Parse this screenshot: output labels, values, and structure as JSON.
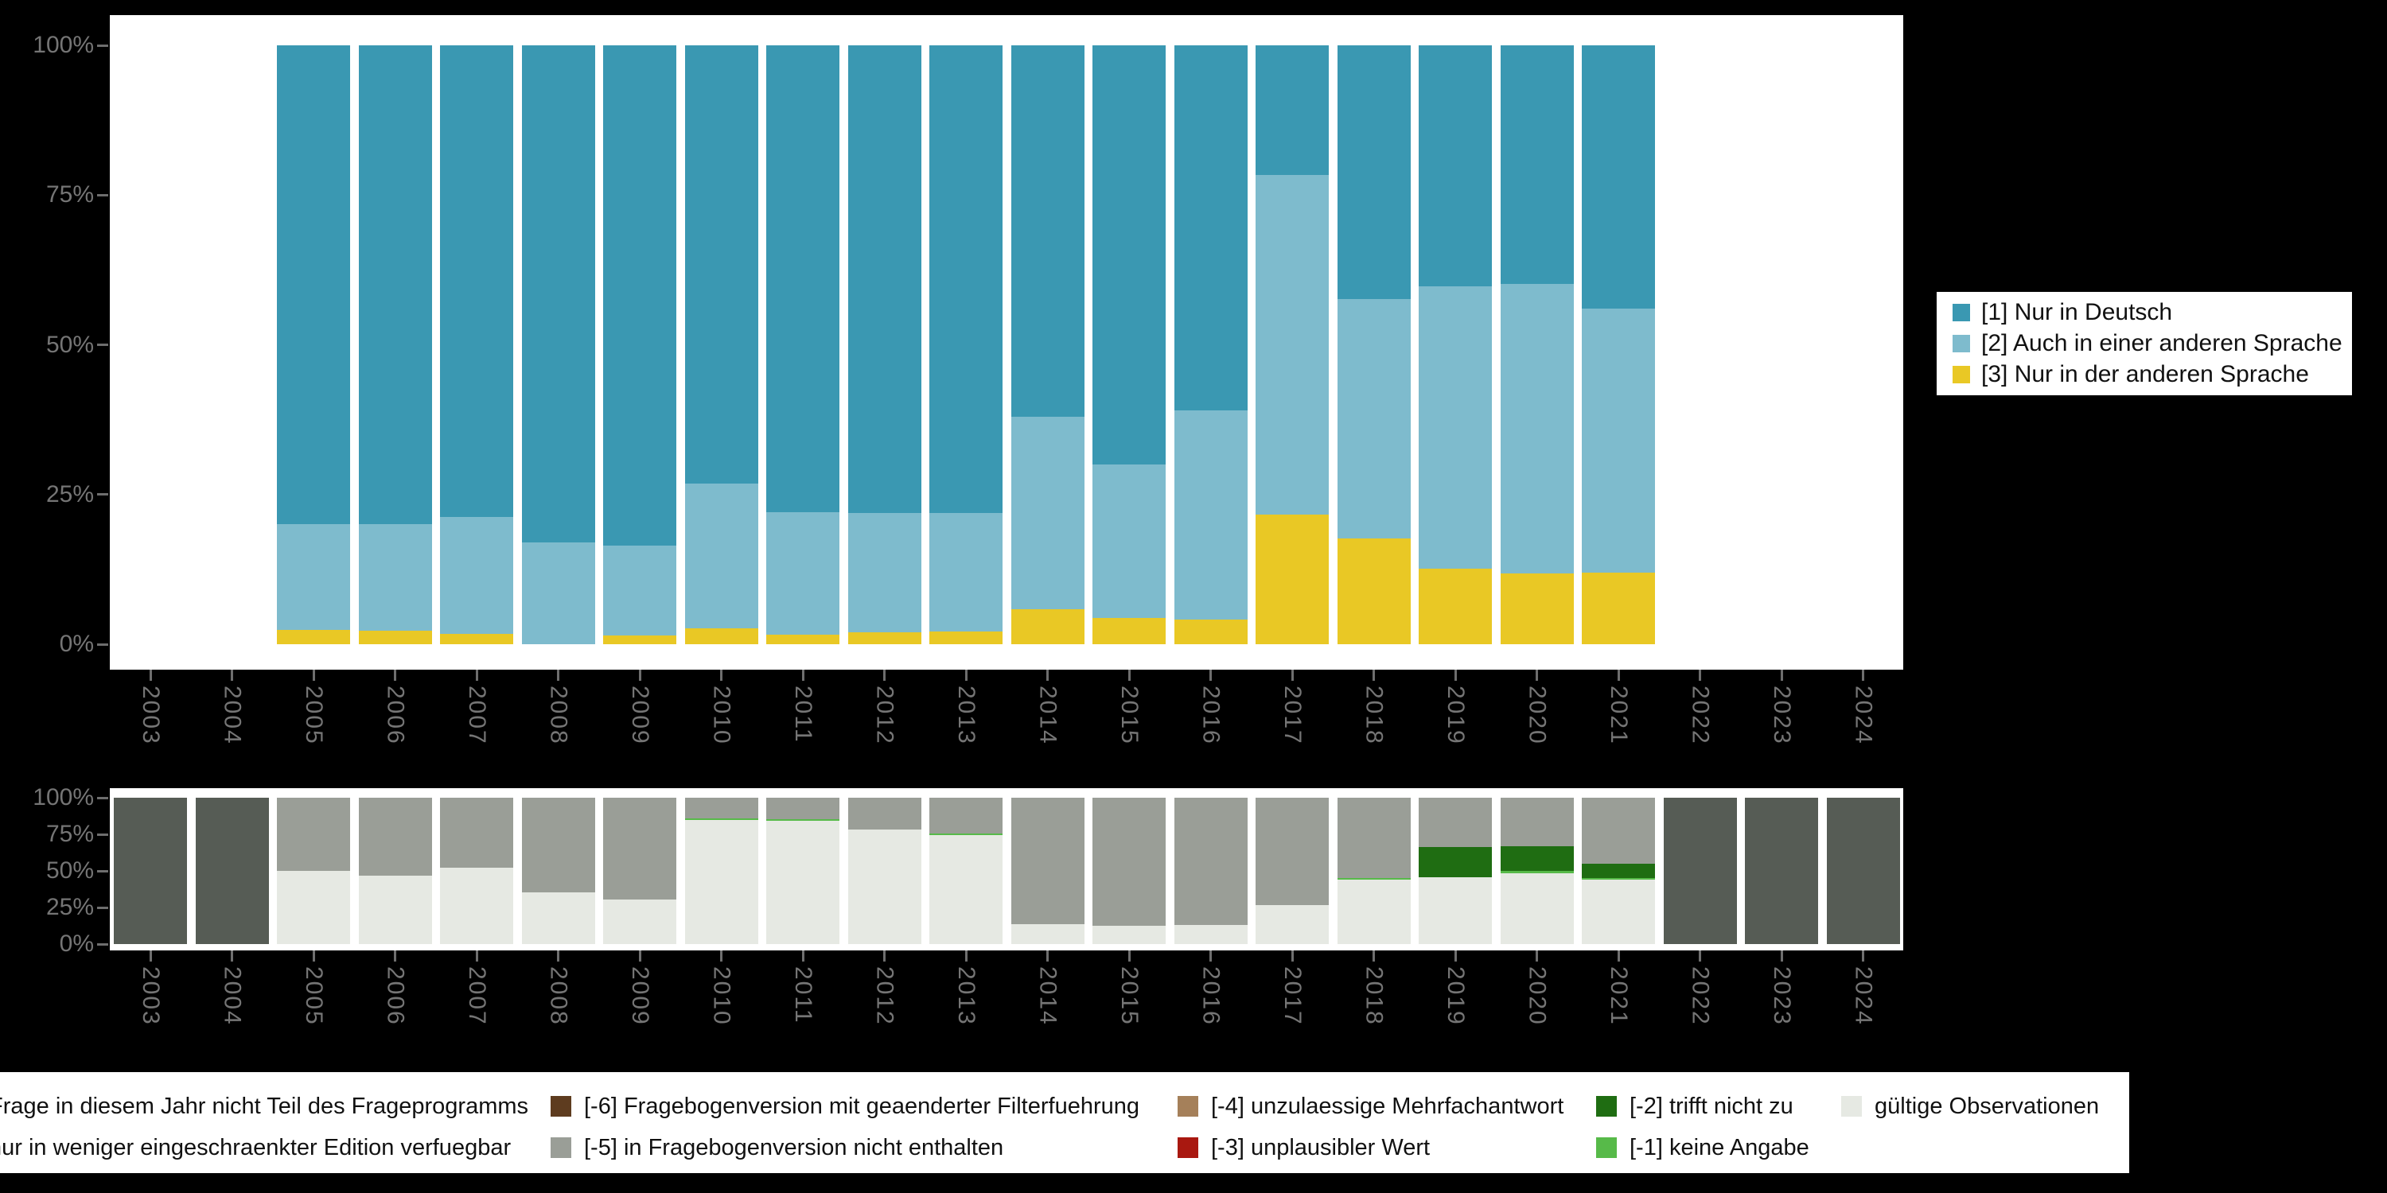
{
  "figure": {
    "background_color": "#000000",
    "panel_color": "#ffffff",
    "tick_text_color": "#757575"
  },
  "axes": {
    "y_tick_labels": [
      "100%",
      "75%",
      "50%",
      "25%",
      "0%"
    ],
    "year_labels": [
      "2003",
      "2004",
      "2005",
      "2006",
      "2007",
      "2008",
      "2009",
      "2010",
      "2011",
      "2012",
      "2013",
      "2014",
      "2015",
      "2016",
      "2017",
      "2018",
      "2019",
      "2020",
      "2021",
      "2022",
      "2023",
      "2024"
    ]
  },
  "top_legend": {
    "entries": [
      {
        "label": "[1] Nur in Deutsch",
        "color": "#3a98b2"
      },
      {
        "label": "[2] Auch in einer anderen Sprache",
        "color": "#7ebbcd"
      },
      {
        "label": "[3] Nur in der anderen Sprache",
        "color": "#e9c825"
      }
    ]
  },
  "bottom_legend": {
    "rows": [
      [
        {
          "label": "Frage in diesem Jahr nicht Teil des Frageprogramms",
          "color": "#565c55"
        },
        {
          "label": "[-6] Fragebogenversion mit geaenderter Filterfuehrung",
          "color": "#5e3c1f"
        },
        {
          "label": "[-4] unzulaessige Mehrfachantwort",
          "color": "#a5805a"
        },
        {
          "label": "[-2] trifft nicht zu",
          "color": "#1f6d12"
        },
        {
          "label": "gültige Observationen",
          "color": "#e6e9e3"
        }
      ],
      [
        {
          "label": "nur in weniger eingeschraenkter Edition verfuegbar",
          "color": "#9a9e97"
        },
        {
          "label": "[-5] in Fragebogenversion nicht enthalten",
          "color": "#9a9e97"
        },
        {
          "label": "[-3] unplausibler Wert",
          "color": "#a91810"
        },
        {
          "label": "[-1] keine Angabe",
          "color": "#57ba49"
        }
      ]
    ]
  },
  "chart_data": [
    {
      "type": "bar",
      "stacked": true,
      "title": "",
      "xlabel": "",
      "ylabel": "",
      "ylim": [
        0,
        100
      ],
      "grid": false,
      "legend_position": "right",
      "y_tick_labels": [
        "0%",
        "25%",
        "50%",
        "75%",
        "100%"
      ],
      "categories": [
        "2003",
        "2004",
        "2005",
        "2006",
        "2007",
        "2008",
        "2009",
        "2010",
        "2011",
        "2012",
        "2013",
        "2014",
        "2015",
        "2016",
        "2017",
        "2018",
        "2019",
        "2020",
        "2021",
        "2022",
        "2023",
        "2024"
      ],
      "series": [
        {
          "name": "[3] Nur in der anderen Sprache",
          "color": "#e9c825",
          "values": [
            0,
            0,
            2.4,
            2.3,
            1.7,
            0,
            1.5,
            2.7,
            1.6,
            2.0,
            2.1,
            5.8,
            4.4,
            4.1,
            21.7,
            17.6,
            12.6,
            11.8,
            12.0,
            0,
            0,
            0
          ]
        },
        {
          "name": "[2] Auch in einer anderen Sprache",
          "color": "#7ebbcd",
          "values": [
            0,
            0,
            17.6,
            17.7,
            19.5,
            17.0,
            15.0,
            24.1,
            20.4,
            19.9,
            19.8,
            32.2,
            25.6,
            35.0,
            56.7,
            40.1,
            47.2,
            48.4,
            44.0,
            0,
            0,
            0
          ]
        },
        {
          "name": "[1] Nur in Deutsch",
          "color": "#3a98b2",
          "values": [
            0,
            0,
            80.0,
            80.0,
            78.8,
            83.0,
            83.5,
            73.2,
            78.0,
            78.1,
            78.1,
            62.0,
            70.0,
            60.9,
            21.6,
            42.3,
            40.2,
            39.8,
            44.0,
            0,
            0,
            0
          ]
        }
      ]
    },
    {
      "type": "bar",
      "stacked": true,
      "title": "",
      "xlabel": "",
      "ylabel": "",
      "ylim": [
        0,
        100
      ],
      "grid": false,
      "legend_position": "bottom",
      "y_tick_labels": [
        "0%",
        "25%",
        "50%",
        "75%",
        "100%"
      ],
      "categories": [
        "2003",
        "2004",
        "2005",
        "2006",
        "2007",
        "2008",
        "2009",
        "2010",
        "2011",
        "2012",
        "2013",
        "2014",
        "2015",
        "2016",
        "2017",
        "2018",
        "2019",
        "2020",
        "2021",
        "2022",
        "2023",
        "2024"
      ],
      "series": [
        {
          "name": "gültige Observationen",
          "color": "#e6e9e3",
          "values": [
            0,
            0,
            50,
            47,
            52,
            35.5,
            30.5,
            85,
            84.5,
            78,
            74.5,
            13.7,
            12.3,
            12.8,
            26.5,
            44,
            45.5,
            48.5,
            44,
            0,
            0,
            0
          ]
        },
        {
          "name": "[-1] keine Angabe",
          "color": "#57ba49",
          "values": [
            0,
            0,
            0,
            0,
            0,
            0,
            0,
            1,
            1,
            0,
            1,
            0,
            0,
            0,
            0,
            1,
            0,
            1.5,
            1,
            0,
            0,
            0
          ]
        },
        {
          "name": "[-2] trifft nicht zu",
          "color": "#1f6d12",
          "values": [
            0,
            0,
            0,
            0,
            0,
            0,
            0,
            0,
            0,
            0,
            0,
            0,
            0,
            0,
            0,
            0,
            21,
            17,
            10,
            0,
            0,
            0
          ]
        },
        {
          "name": "[-3] unplausibler Wert",
          "color": "#a91810",
          "values": [
            0,
            0,
            0,
            0,
            0,
            0,
            0,
            0,
            0,
            0,
            0,
            0,
            0,
            0,
            0,
            0,
            0,
            0,
            0,
            0,
            0,
            0
          ]
        },
        {
          "name": "[-4] unzulaessige Mehrfachantwort",
          "color": "#a5805a",
          "values": [
            0,
            0,
            0,
            0,
            0,
            0,
            0,
            0,
            0,
            0,
            0,
            0,
            0,
            0,
            0,
            0,
            0,
            0,
            0,
            0,
            0,
            0
          ]
        },
        {
          "name": "[-5] in Fragebogenversion nicht enthalten",
          "color": "#9a9e97",
          "values": [
            0,
            0,
            50,
            53,
            48,
            64.5,
            69.5,
            14,
            14.5,
            22,
            24.5,
            86.3,
            87.7,
            87.2,
            73.5,
            55,
            33.5,
            33,
            45,
            0,
            0,
            0
          ]
        },
        {
          "name": "[-6] Fragebogenversion mit geaenderter Filterfuehrung",
          "color": "#5e3c1f",
          "values": [
            0,
            0,
            0,
            0,
            0,
            0,
            0,
            0,
            0,
            0,
            0,
            0,
            0,
            0,
            0,
            0,
            0,
            0,
            0,
            0,
            0,
            0
          ]
        },
        {
          "name": "nur in weniger eingeschraenkter Edition verfuegbar",
          "color": "#9a9e97",
          "values": [
            0,
            0,
            0,
            0,
            0,
            0,
            0,
            0,
            0,
            0,
            0,
            0,
            0,
            0,
            0,
            0,
            0,
            0,
            0,
            0,
            0,
            0
          ]
        },
        {
          "name": "Frage in diesem Jahr nicht Teil des Frageprogramms",
          "color": "#565c55",
          "values": [
            100,
            100,
            0,
            0,
            0,
            0,
            0,
            0,
            0,
            0,
            0,
            0,
            0,
            0,
            0,
            0,
            0,
            0,
            0,
            100,
            100,
            100
          ]
        }
      ]
    }
  ]
}
